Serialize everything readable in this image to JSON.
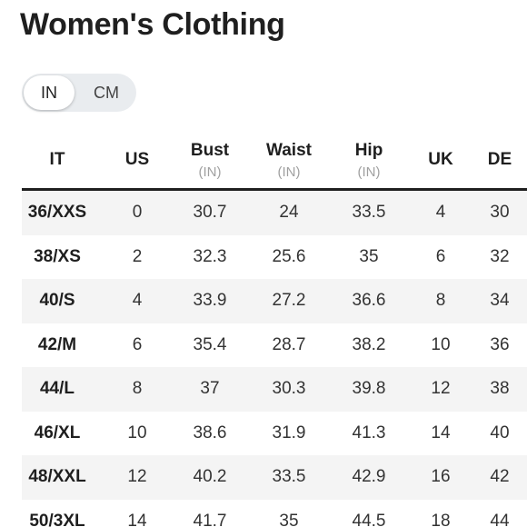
{
  "title": "Women's Clothing",
  "unit_toggle": {
    "options": [
      "IN",
      "CM"
    ],
    "selected": "IN"
  },
  "table": {
    "columns": [
      {
        "label": "IT",
        "unit": ""
      },
      {
        "label": "US",
        "unit": ""
      },
      {
        "label": "Bust",
        "unit": "(IN)"
      },
      {
        "label": "Waist",
        "unit": "(IN)"
      },
      {
        "label": "Hip",
        "unit": "(IN)"
      },
      {
        "label": "UK",
        "unit": ""
      },
      {
        "label": "DE",
        "unit": ""
      }
    ],
    "rows": [
      [
        "36/XXS",
        "0",
        "30.7",
        "24",
        "33.5",
        "4",
        "30"
      ],
      [
        "38/XS",
        "2",
        "32.3",
        "25.6",
        "35",
        "6",
        "32"
      ],
      [
        "40/S",
        "4",
        "33.9",
        "27.2",
        "36.6",
        "8",
        "34"
      ],
      [
        "42/M",
        "6",
        "35.4",
        "28.7",
        "38.2",
        "10",
        "36"
      ],
      [
        "44/L",
        "8",
        "37",
        "30.3",
        "39.8",
        "12",
        "38"
      ],
      [
        "46/XL",
        "10",
        "38.6",
        "31.9",
        "41.3",
        "14",
        "40"
      ],
      [
        "48/XXL",
        "12",
        "40.2",
        "33.5",
        "42.9",
        "16",
        "42"
      ],
      [
        "50/3XL",
        "14",
        "41.7",
        "35",
        "44.5",
        "18",
        "44"
      ]
    ]
  }
}
